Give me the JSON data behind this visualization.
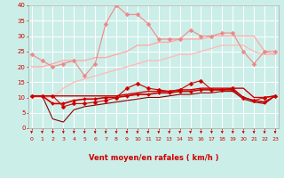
{
  "x": [
    0,
    1,
    2,
    3,
    4,
    5,
    6,
    7,
    8,
    9,
    10,
    11,
    12,
    13,
    14,
    15,
    16,
    17,
    18,
    19,
    20,
    21,
    22,
    23
  ],
  "series": [
    {
      "name": "rafales_max_scatter",
      "y": [
        24,
        22,
        20,
        21,
        22,
        17,
        21,
        34,
        40,
        37,
        37,
        34,
        29,
        29,
        29,
        32,
        30,
        30,
        31,
        31,
        25,
        21,
        25,
        25
      ],
      "color": "#ee8888",
      "lw": 0.8,
      "marker": "D",
      "ms": 2.5,
      "zorder": 3
    },
    {
      "name": "rafales_upper_trend",
      "y": [
        20,
        20,
        21,
        22,
        22,
        22,
        23,
        23,
        24,
        25,
        27,
        27,
        28,
        28,
        29,
        29,
        29,
        30,
        30,
        30,
        30,
        30,
        25,
        24
      ],
      "color": "#ffaaaa",
      "lw": 1.0,
      "marker": null,
      "ms": 0,
      "zorder": 2
    },
    {
      "name": "rafales_lower_trend",
      "y": [
        10,
        10,
        10,
        13,
        15,
        16,
        17,
        18,
        19,
        20,
        21,
        22,
        22,
        23,
        24,
        24,
        25,
        26,
        27,
        27,
        27,
        25,
        24,
        24
      ],
      "color": "#ffbbbb",
      "lw": 1.0,
      "marker": null,
      "ms": 0,
      "zorder": 2
    },
    {
      "name": "vent_max_scatter",
      "y": [
        10.5,
        10.5,
        10.5,
        7,
        8,
        8,
        8.5,
        9,
        10,
        13,
        14.5,
        13,
        12.5,
        12,
        12.5,
        14.5,
        15.5,
        12.5,
        12.5,
        13,
        10,
        9,
        10,
        10.5
      ],
      "color": "#cc0000",
      "lw": 0.8,
      "marker": "D",
      "ms": 2.5,
      "zorder": 5
    },
    {
      "name": "vent_upper_trend",
      "y": [
        10.5,
        10.5,
        10.5,
        10.5,
        10.5,
        10.5,
        10.5,
        10.5,
        10.5,
        11,
        11.5,
        12,
        12,
        12,
        12.5,
        12.5,
        13,
        13,
        13,
        13,
        13,
        10,
        10,
        10.5
      ],
      "color": "#cc0000",
      "lw": 1.0,
      "marker": null,
      "ms": 0,
      "zorder": 4
    },
    {
      "name": "vent_mid_trend",
      "y": [
        10.5,
        10.5,
        8,
        8,
        9,
        9.5,
        9.5,
        10,
        10,
        10.5,
        11,
        11,
        11.5,
        11.5,
        12,
        12,
        12.5,
        12.5,
        12.5,
        12.5,
        10,
        9,
        8.5,
        10.5
      ],
      "color": "#cc0000",
      "lw": 1.2,
      "marker": "D",
      "ms": 2,
      "zorder": 4
    },
    {
      "name": "vent_lower_trend",
      "y": [
        10.5,
        10.5,
        3,
        2,
        6,
        7,
        7.5,
        8,
        8.5,
        9,
        9.5,
        10,
        10,
        10.5,
        11,
        11,
        11.5,
        11.5,
        12,
        12,
        9.5,
        8.5,
        8,
        10.5
      ],
      "color": "#880000",
      "lw": 0.8,
      "marker": null,
      "ms": 0,
      "zorder": 3
    }
  ],
  "xlabel": "Vent moyen/en rafales ( km/h )",
  "bg_color": "#cceee8",
  "grid_color": "#aadddd",
  "text_color": "#cc0000",
  "xlim": [
    -0.3,
    23.3
  ],
  "ylim": [
    0,
    40
  ],
  "yticks": [
    0,
    5,
    10,
    15,
    20,
    25,
    30,
    35,
    40
  ],
  "xticks": [
    0,
    1,
    2,
    3,
    4,
    5,
    6,
    7,
    8,
    9,
    10,
    11,
    12,
    13,
    14,
    15,
    16,
    17,
    18,
    19,
    20,
    21,
    22,
    23
  ]
}
